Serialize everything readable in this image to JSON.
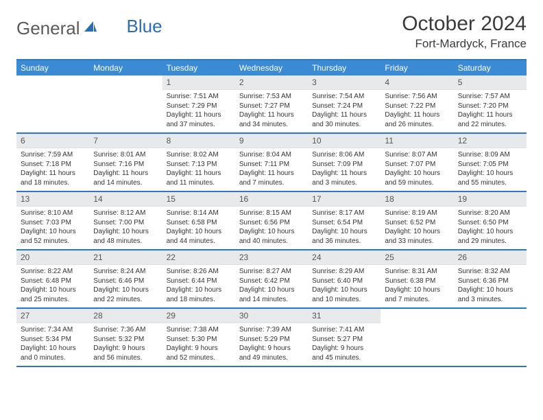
{
  "logo": {
    "text_general": "General",
    "text_blue": "Blue"
  },
  "title": "October 2024",
  "location": "Fort-Mardyck, France",
  "weekday_labels": [
    "Sunday",
    "Monday",
    "Tuesday",
    "Wednesday",
    "Thursday",
    "Friday",
    "Saturday"
  ],
  "colors": {
    "header_bar": "#3b8bd4",
    "border": "#2a78c4",
    "daynum_bg": "#e8e9ea",
    "text": "#333333",
    "logo_gray": "#5a5a5a",
    "logo_blue": "#2a6fb5"
  },
  "weeks": [
    [
      null,
      null,
      {
        "n": "1",
        "sr": "Sunrise: 7:51 AM",
        "ss": "Sunset: 7:29 PM",
        "d1": "Daylight: 11 hours",
        "d2": "and 37 minutes."
      },
      {
        "n": "2",
        "sr": "Sunrise: 7:53 AM",
        "ss": "Sunset: 7:27 PM",
        "d1": "Daylight: 11 hours",
        "d2": "and 34 minutes."
      },
      {
        "n": "3",
        "sr": "Sunrise: 7:54 AM",
        "ss": "Sunset: 7:24 PM",
        "d1": "Daylight: 11 hours",
        "d2": "and 30 minutes."
      },
      {
        "n": "4",
        "sr": "Sunrise: 7:56 AM",
        "ss": "Sunset: 7:22 PM",
        "d1": "Daylight: 11 hours",
        "d2": "and 26 minutes."
      },
      {
        "n": "5",
        "sr": "Sunrise: 7:57 AM",
        "ss": "Sunset: 7:20 PM",
        "d1": "Daylight: 11 hours",
        "d2": "and 22 minutes."
      }
    ],
    [
      {
        "n": "6",
        "sr": "Sunrise: 7:59 AM",
        "ss": "Sunset: 7:18 PM",
        "d1": "Daylight: 11 hours",
        "d2": "and 18 minutes."
      },
      {
        "n": "7",
        "sr": "Sunrise: 8:01 AM",
        "ss": "Sunset: 7:16 PM",
        "d1": "Daylight: 11 hours",
        "d2": "and 14 minutes."
      },
      {
        "n": "8",
        "sr": "Sunrise: 8:02 AM",
        "ss": "Sunset: 7:13 PM",
        "d1": "Daylight: 11 hours",
        "d2": "and 11 minutes."
      },
      {
        "n": "9",
        "sr": "Sunrise: 8:04 AM",
        "ss": "Sunset: 7:11 PM",
        "d1": "Daylight: 11 hours",
        "d2": "and 7 minutes."
      },
      {
        "n": "10",
        "sr": "Sunrise: 8:06 AM",
        "ss": "Sunset: 7:09 PM",
        "d1": "Daylight: 11 hours",
        "d2": "and 3 minutes."
      },
      {
        "n": "11",
        "sr": "Sunrise: 8:07 AM",
        "ss": "Sunset: 7:07 PM",
        "d1": "Daylight: 10 hours",
        "d2": "and 59 minutes."
      },
      {
        "n": "12",
        "sr": "Sunrise: 8:09 AM",
        "ss": "Sunset: 7:05 PM",
        "d1": "Daylight: 10 hours",
        "d2": "and 55 minutes."
      }
    ],
    [
      {
        "n": "13",
        "sr": "Sunrise: 8:10 AM",
        "ss": "Sunset: 7:03 PM",
        "d1": "Daylight: 10 hours",
        "d2": "and 52 minutes."
      },
      {
        "n": "14",
        "sr": "Sunrise: 8:12 AM",
        "ss": "Sunset: 7:00 PM",
        "d1": "Daylight: 10 hours",
        "d2": "and 48 minutes."
      },
      {
        "n": "15",
        "sr": "Sunrise: 8:14 AM",
        "ss": "Sunset: 6:58 PM",
        "d1": "Daylight: 10 hours",
        "d2": "and 44 minutes."
      },
      {
        "n": "16",
        "sr": "Sunrise: 8:15 AM",
        "ss": "Sunset: 6:56 PM",
        "d1": "Daylight: 10 hours",
        "d2": "and 40 minutes."
      },
      {
        "n": "17",
        "sr": "Sunrise: 8:17 AM",
        "ss": "Sunset: 6:54 PM",
        "d1": "Daylight: 10 hours",
        "d2": "and 36 minutes."
      },
      {
        "n": "18",
        "sr": "Sunrise: 8:19 AM",
        "ss": "Sunset: 6:52 PM",
        "d1": "Daylight: 10 hours",
        "d2": "and 33 minutes."
      },
      {
        "n": "19",
        "sr": "Sunrise: 8:20 AM",
        "ss": "Sunset: 6:50 PM",
        "d1": "Daylight: 10 hours",
        "d2": "and 29 minutes."
      }
    ],
    [
      {
        "n": "20",
        "sr": "Sunrise: 8:22 AM",
        "ss": "Sunset: 6:48 PM",
        "d1": "Daylight: 10 hours",
        "d2": "and 25 minutes."
      },
      {
        "n": "21",
        "sr": "Sunrise: 8:24 AM",
        "ss": "Sunset: 6:46 PM",
        "d1": "Daylight: 10 hours",
        "d2": "and 22 minutes."
      },
      {
        "n": "22",
        "sr": "Sunrise: 8:26 AM",
        "ss": "Sunset: 6:44 PM",
        "d1": "Daylight: 10 hours",
        "d2": "and 18 minutes."
      },
      {
        "n": "23",
        "sr": "Sunrise: 8:27 AM",
        "ss": "Sunset: 6:42 PM",
        "d1": "Daylight: 10 hours",
        "d2": "and 14 minutes."
      },
      {
        "n": "24",
        "sr": "Sunrise: 8:29 AM",
        "ss": "Sunset: 6:40 PM",
        "d1": "Daylight: 10 hours",
        "d2": "and 10 minutes."
      },
      {
        "n": "25",
        "sr": "Sunrise: 8:31 AM",
        "ss": "Sunset: 6:38 PM",
        "d1": "Daylight: 10 hours",
        "d2": "and 7 minutes."
      },
      {
        "n": "26",
        "sr": "Sunrise: 8:32 AM",
        "ss": "Sunset: 6:36 PM",
        "d1": "Daylight: 10 hours",
        "d2": "and 3 minutes."
      }
    ],
    [
      {
        "n": "27",
        "sr": "Sunrise: 7:34 AM",
        "ss": "Sunset: 5:34 PM",
        "d1": "Daylight: 10 hours",
        "d2": "and 0 minutes."
      },
      {
        "n": "28",
        "sr": "Sunrise: 7:36 AM",
        "ss": "Sunset: 5:32 PM",
        "d1": "Daylight: 9 hours",
        "d2": "and 56 minutes."
      },
      {
        "n": "29",
        "sr": "Sunrise: 7:38 AM",
        "ss": "Sunset: 5:30 PM",
        "d1": "Daylight: 9 hours",
        "d2": "and 52 minutes."
      },
      {
        "n": "30",
        "sr": "Sunrise: 7:39 AM",
        "ss": "Sunset: 5:29 PM",
        "d1": "Daylight: 9 hours",
        "d2": "and 49 minutes."
      },
      {
        "n": "31",
        "sr": "Sunrise: 7:41 AM",
        "ss": "Sunset: 5:27 PM",
        "d1": "Daylight: 9 hours",
        "d2": "and 45 minutes."
      },
      null,
      null
    ]
  ]
}
